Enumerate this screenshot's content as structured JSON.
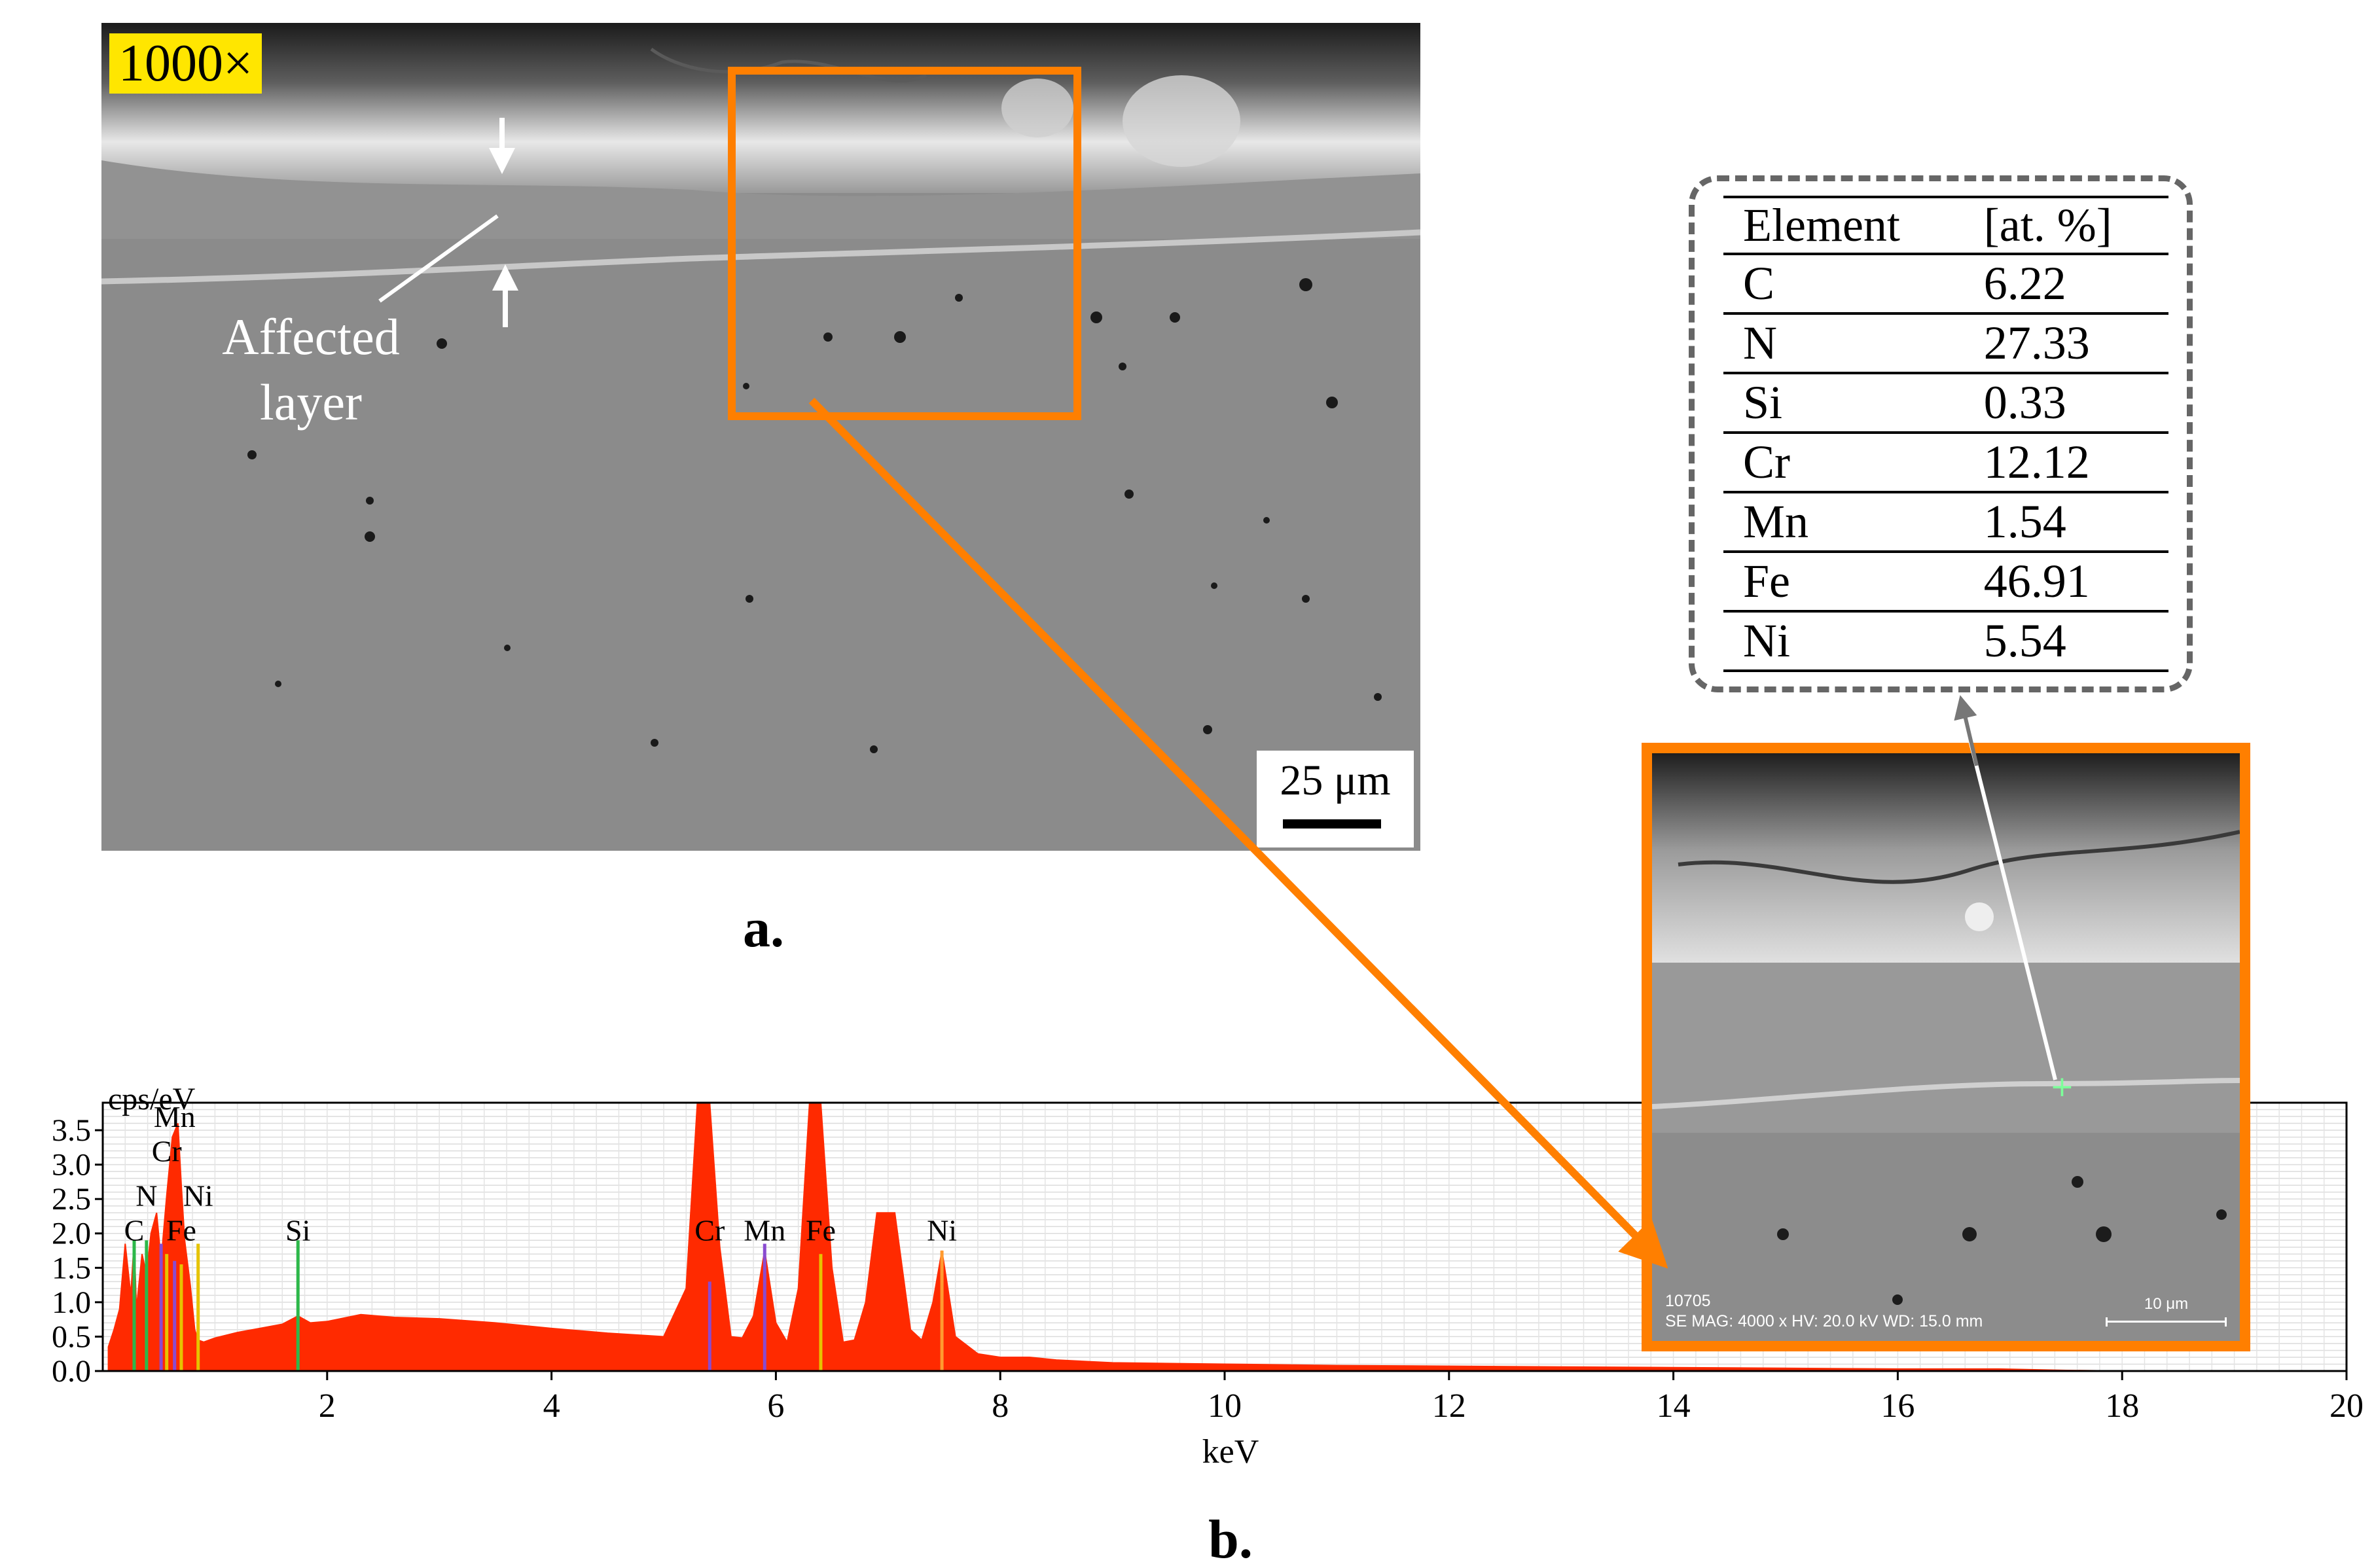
{
  "panel_a": {
    "label": "a.",
    "magnification": "1000×",
    "scale_bar": "25 μm",
    "annotation": "Affected layer"
  },
  "zoom_image": {
    "info_line1": "10705",
    "info_line2": "SE  MAG: 4000 x  HV: 20.0 kV  WD: 15.0 mm",
    "scale_bar": "10 μm",
    "point_marker": "+"
  },
  "composition_table": {
    "headers": [
      "Element",
      "[at. %]"
    ],
    "rows": [
      [
        "C",
        "6.22"
      ],
      [
        "N",
        "27.33"
      ],
      [
        "Si",
        "0.33"
      ],
      [
        "Cr",
        "12.12"
      ],
      [
        "Mn",
        "1.54"
      ],
      [
        "Fe",
        "46.91"
      ],
      [
        "Ni",
        "5.54"
      ]
    ]
  },
  "colors": {
    "highlight": "#ff7f00",
    "spectrum": "#ff2a00",
    "label_bg": "#ffe600",
    "table_border": "#666666"
  },
  "chart_data": {
    "type": "area",
    "title": "",
    "ylabel": "cps/eV",
    "xlabel": "keV",
    "panel_label": "b.",
    "xlim": [
      0,
      20
    ],
    "ylim": [
      0,
      3.9
    ],
    "x_ticks": [
      2,
      4,
      6,
      8,
      10,
      12,
      14,
      16,
      18,
      20
    ],
    "y_ticks": [
      0.0,
      0.5,
      1.0,
      1.5,
      2.0,
      2.5,
      3.0,
      3.5
    ],
    "y_tick_labels": [
      "0.0",
      "0.5",
      "1.0",
      "1.5",
      "2.0",
      "2.5",
      "3.0",
      "3.5"
    ],
    "grid": true,
    "series": [
      {
        "x": [
          0.05,
          0.1,
          0.15,
          0.2,
          0.25,
          0.28,
          0.3,
          0.35,
          0.39,
          0.43,
          0.48,
          0.52,
          0.57,
          0.62,
          0.67,
          0.7,
          0.73,
          0.78,
          0.82,
          0.85,
          0.9,
          0.95,
          1.0,
          1.1,
          1.2,
          1.4,
          1.6,
          1.74,
          1.85,
          2.0,
          2.3,
          2.6,
          3.0,
          3.5,
          4.0,
          4.5,
          5.0,
          5.2,
          5.3,
          5.41,
          5.5,
          5.6,
          5.7,
          5.8,
          5.9,
          6.0,
          6.1,
          6.2,
          6.3,
          6.4,
          6.5,
          6.6,
          6.7,
          6.8,
          6.9,
          7.06,
          7.2,
          7.3,
          7.4,
          7.48,
          7.6,
          7.8,
          8.0,
          8.26,
          8.5,
          9.0,
          10.0,
          11.0,
          12.0,
          13.0,
          14.0,
          15.0,
          16.0,
          16.9,
          17.5,
          18.0,
          19.0,
          20.0
        ],
        "y": [
          0.35,
          0.6,
          0.9,
          1.85,
          1.1,
          1.9,
          0.9,
          1.7,
          1.4,
          2.0,
          2.3,
          1.6,
          2.55,
          3.4,
          3.6,
          2.7,
          1.9,
          1.25,
          0.6,
          0.45,
          0.42,
          0.45,
          0.48,
          0.52,
          0.56,
          0.62,
          0.68,
          0.8,
          0.7,
          0.72,
          0.82,
          0.78,
          0.76,
          0.7,
          0.62,
          0.55,
          0.5,
          1.2,
          3.9,
          3.9,
          1.8,
          0.5,
          0.48,
          0.8,
          1.75,
          0.7,
          0.42,
          1.2,
          3.9,
          3.9,
          1.5,
          0.42,
          0.45,
          1.0,
          2.3,
          2.3,
          0.6,
          0.45,
          1.0,
          1.75,
          0.5,
          0.25,
          0.2,
          0.2,
          0.16,
          0.12,
          0.1,
          0.08,
          0.07,
          0.06,
          0.05,
          0.04,
          0.03,
          0.03,
          0.01,
          0.0,
          0.0,
          0.0
        ]
      }
    ],
    "peak_labels": [
      {
        "text": "C",
        "x": 0.28,
        "y": 1.9
      },
      {
        "text": "N",
        "x": 0.39,
        "y": 2.4
      },
      {
        "text": "Cr",
        "x": 0.57,
        "y": 3.05
      },
      {
        "text": "Mn",
        "x": 0.64,
        "y": 3.55
      },
      {
        "text": "Ni",
        "x": 0.85,
        "y": 2.4
      },
      {
        "text": "Fe",
        "x": 0.7,
        "y": 1.9
      },
      {
        "text": "Si",
        "x": 1.74,
        "y": 1.9
      },
      {
        "text": "Cr",
        "x": 5.41,
        "y": 1.9
      },
      {
        "text": "Mn",
        "x": 5.9,
        "y": 1.9
      },
      {
        "text": "Fe",
        "x": 6.4,
        "y": 1.9
      },
      {
        "text": "Ni",
        "x": 7.48,
        "y": 1.9
      }
    ],
    "element_lines": [
      {
        "x": 0.28,
        "y": 1.9,
        "color": "#2db84a"
      },
      {
        "x": 0.39,
        "y": 1.9,
        "color": "#2db84a"
      },
      {
        "x": 0.52,
        "y": 1.85,
        "color": "#8a4bd0"
      },
      {
        "x": 0.57,
        "y": 1.7,
        "color": "#e6c300"
      },
      {
        "x": 0.64,
        "y": 1.6,
        "color": "#8a4bd0"
      },
      {
        "x": 0.7,
        "y": 1.55,
        "color": "#e6c300"
      },
      {
        "x": 0.85,
        "y": 1.85,
        "color": "#e6c300"
      },
      {
        "x": 1.74,
        "y": 1.9,
        "color": "#2db84a"
      },
      {
        "x": 5.41,
        "y": 1.3,
        "color": "#8a4bd0"
      },
      {
        "x": 5.9,
        "y": 1.85,
        "color": "#8a4bd0"
      },
      {
        "x": 6.4,
        "y": 1.7,
        "color": "#e6c300"
      },
      {
        "x": 7.48,
        "y": 1.75,
        "color": "#ff9a30"
      }
    ]
  }
}
